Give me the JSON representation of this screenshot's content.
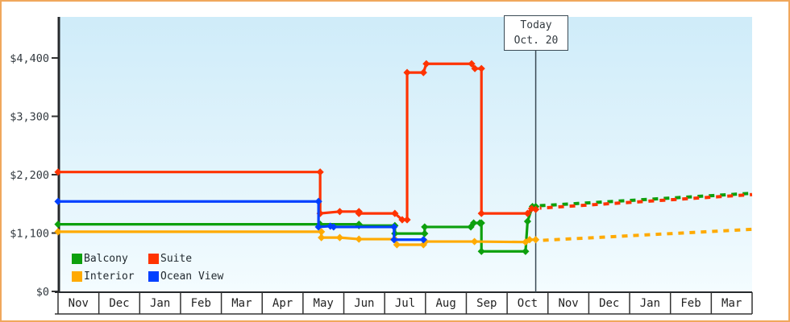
{
  "window": {
    "border_color": "#f0a75c"
  },
  "chart_data": {
    "type": "line",
    "description": "Cruise cabin price history by category with projection after today",
    "x_axis": {
      "months": [
        "Nov",
        "Dec",
        "Jan",
        "Feb",
        "Mar",
        "Apr",
        "May",
        "Jun",
        "Jul",
        "Aug",
        "Sep",
        "Oct",
        "Nov",
        "Dec",
        "Jan",
        "Feb",
        "Mar"
      ]
    },
    "y_axis": {
      "ticks": [
        {
          "value": 0,
          "label": "$0"
        },
        {
          "value": 1100,
          "label": "$1,100"
        },
        {
          "value": 2200,
          "label": "$2,200"
        },
        {
          "value": 3300,
          "label": "$3,300"
        },
        {
          "value": 4400,
          "label": "$4,400"
        }
      ],
      "max": 4400
    },
    "today": {
      "label_line1": "Today",
      "label_line2": "Oct. 20",
      "month_position": 11.7
    },
    "series": [
      {
        "name": "Balcony",
        "color": "#0da00d",
        "solid": [
          [
            0,
            1265
          ],
          [
            6.42,
            1265
          ],
          [
            7.37,
            1265
          ],
          [
            7.37,
            1240
          ],
          [
            8.25,
            1240
          ],
          [
            8.25,
            1090
          ],
          [
            8.98,
            1090
          ],
          [
            8.98,
            1215
          ],
          [
            10.11,
            1215
          ],
          [
            10.18,
            1290
          ],
          [
            10.33,
            1290
          ],
          [
            10.37,
            1290
          ],
          [
            10.37,
            755
          ],
          [
            11.45,
            755
          ],
          [
            11.5,
            1320
          ],
          [
            11.62,
            1600
          ],
          [
            11.7,
            1600
          ]
        ],
        "dotted": [
          [
            11.8,
            1615
          ],
          [
            17,
            1850
          ]
        ]
      },
      {
        "name": "Suite",
        "color": "#ff3300",
        "solid": [
          [
            0,
            2250
          ],
          [
            6.42,
            2250
          ],
          [
            6.42,
            1470
          ],
          [
            6.9,
            1505
          ],
          [
            7.37,
            1505
          ],
          [
            7.37,
            1470
          ],
          [
            8.25,
            1470
          ],
          [
            8.43,
            1350
          ],
          [
            8.55,
            1350
          ],
          [
            8.55,
            4125
          ],
          [
            8.95,
            4125
          ],
          [
            9.02,
            4290
          ],
          [
            10.13,
            4290
          ],
          [
            10.21,
            4200
          ],
          [
            10.37,
            4200
          ],
          [
            10.37,
            1470
          ],
          [
            11.5,
            1470
          ],
          [
            11.6,
            1560
          ],
          [
            11.7,
            1545
          ]
        ],
        "dotted": [
          [
            11.8,
            1570
          ],
          [
            17,
            1825
          ]
        ]
      },
      {
        "name": "Interior",
        "color": "#ffaa00",
        "solid": [
          [
            0,
            1125
          ],
          [
            6.45,
            1125
          ],
          [
            6.45,
            1015
          ],
          [
            6.9,
            1015
          ],
          [
            7.37,
            985
          ],
          [
            8.25,
            985
          ],
          [
            8.3,
            880
          ],
          [
            8.95,
            880
          ],
          [
            9.0,
            940
          ],
          [
            10.2,
            940
          ],
          [
            11.45,
            930
          ],
          [
            11.55,
            975
          ],
          [
            11.7,
            975
          ]
        ],
        "dotted": [
          [
            11.8,
            960
          ],
          [
            17,
            1170
          ]
        ]
      },
      {
        "name": "Ocean View",
        "color": "#0040ff",
        "solid": [
          [
            0,
            1695
          ],
          [
            6.38,
            1695
          ],
          [
            6.38,
            1215
          ],
          [
            6.67,
            1230
          ],
          [
            6.75,
            1215
          ],
          [
            8.23,
            1215
          ],
          [
            8.23,
            975
          ],
          [
            8.95,
            975
          ]
        ],
        "dotted": []
      }
    ]
  }
}
